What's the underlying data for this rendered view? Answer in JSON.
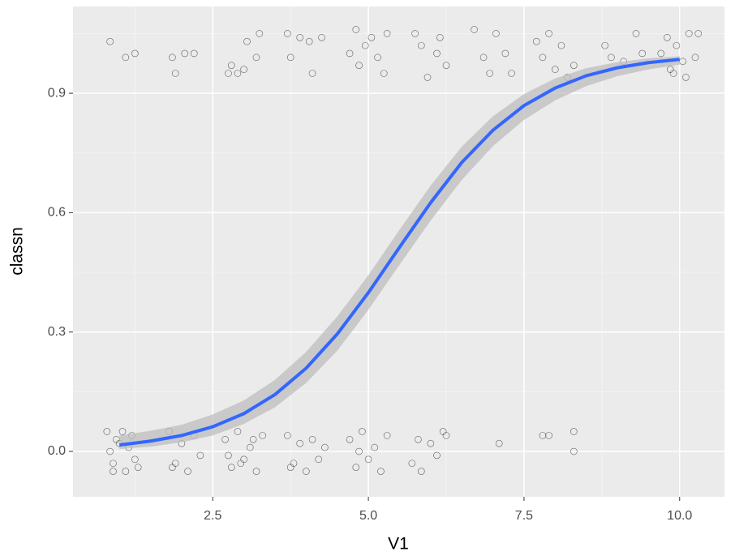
{
  "chart_data": {
    "type": "scatter",
    "x_label": "V1",
    "y_label": "classn",
    "xlim": [
      0.255,
      10.72
    ],
    "ylim": [
      -0.114,
      1.118
    ],
    "xticks": [
      2.5,
      {
        "value": 5,
        "label": "5.0"
      },
      7.5,
      {
        "value": 10,
        "label": "10.0"
      }
    ],
    "yticks": [
      {
        "value": 0,
        "label": "0.0"
      },
      0.3,
      0.6,
      0.9
    ],
    "xminor": [
      1.25,
      3.75,
      6.25,
      8.75
    ],
    "yminor": [
      0.15,
      0.45,
      0.75,
      1.05
    ],
    "grid": true,
    "points": {
      "color": "#000000",
      "x": [
        0.8,
        0.9,
        1.0,
        1.1,
        1.2,
        0.85,
        1.25,
        0.95,
        1.15,
        1.3,
        0.9,
        1.05,
        1.8,
        1.9,
        2.0,
        2.1,
        2.2,
        2.3,
        1.85,
        2.7,
        2.8,
        2.9,
        3.0,
        3.1,
        3.2,
        3.3,
        2.75,
        3.15,
        2.95,
        3.7,
        3.8,
        3.9,
        4.0,
        4.1,
        4.2,
        4.3,
        3.75,
        4.7,
        4.8,
        4.9,
        5.0,
        5.1,
        5.2,
        5.3,
        4.85,
        5.7,
        5.8,
        5.85,
        6.0,
        6.1,
        6.2,
        6.25,
        7.1,
        7.8,
        7.9,
        8.3,
        8.3,
        0.85,
        1.1,
        1.25,
        1.85,
        1.9,
        2.05,
        2.2,
        2.75,
        2.8,
        2.9,
        3.0,
        3.05,
        3.2,
        3.25,
        3.7,
        3.75,
        3.9,
        4.05,
        4.1,
        4.25,
        4.7,
        4.8,
        4.85,
        4.95,
        5.05,
        5.15,
        5.25,
        5.3,
        5.75,
        5.85,
        5.95,
        6.1,
        6.15,
        6.25,
        6.7,
        6.85,
        6.95,
        7.05,
        7.2,
        7.3,
        7.7,
        7.8,
        7.9,
        8.0,
        8.1,
        8.2,
        8.3,
        8.8,
        8.9,
        9.1,
        9.3,
        9.4,
        9.7,
        9.8,
        9.85,
        9.95,
        10.05,
        10.15,
        10.25,
        10.3,
        9.9,
        10.1
      ],
      "y": [
        0.05,
        -0.03,
        0.02,
        -0.05,
        0.04,
        0.0,
        -0.02,
        0.03,
        0.01,
        -0.04,
        -0.05,
        0.05,
        0.05,
        -0.03,
        0.02,
        -0.05,
        0.04,
        -0.01,
        -0.04,
        0.03,
        -0.04,
        0.05,
        -0.02,
        0.01,
        -0.05,
        0.04,
        -0.01,
        0.03,
        -0.03,
        0.04,
        -0.03,
        0.02,
        -0.05,
        0.03,
        -0.02,
        0.01,
        -0.04,
        0.03,
        -0.04,
        0.05,
        -0.02,
        0.01,
        -0.05,
        0.04,
        0.0,
        -0.03,
        0.03,
        -0.05,
        0.02,
        -0.01,
        0.05,
        0.04,
        0.02,
        0.04,
        0.04,
        0.05,
        0.0,
        1.03,
        0.99,
        1.0,
        0.99,
        0.95,
        1.0,
        1.0,
        0.95,
        0.97,
        0.95,
        0.96,
        1.03,
        0.99,
        1.05,
        1.05,
        0.99,
        1.04,
        1.03,
        0.95,
        1.04,
        1.0,
        1.06,
        0.97,
        1.02,
        1.04,
        0.99,
        0.95,
        1.05,
        1.05,
        1.02,
        0.94,
        1.0,
        1.04,
        0.97,
        1.06,
        0.99,
        0.95,
        1.05,
        1.0,
        0.95,
        1.03,
        0.99,
        1.05,
        0.96,
        1.02,
        0.94,
        0.97,
        1.02,
        0.99,
        0.98,
        1.05,
        1.0,
        1.0,
        1.04,
        0.96,
        1.02,
        0.98,
        1.05,
        0.99,
        1.05,
        0.95,
        0.94
      ]
    },
    "fit": {
      "color": "#3366ff",
      "band_color": "#bebebe",
      "x": [
        1,
        1.5,
        2,
        2.5,
        3,
        3.5,
        4,
        4.5,
        5,
        5.5,
        6,
        6.5,
        7,
        7.5,
        8,
        8.5,
        9,
        9.5,
        10
      ],
      "y": [
        0.016,
        0.026,
        0.04,
        0.062,
        0.095,
        0.143,
        0.209,
        0.295,
        0.399,
        0.513,
        0.625,
        0.726,
        0.807,
        0.869,
        0.913,
        0.944,
        0.964,
        0.977,
        0.985
      ],
      "lower": [
        0.006,
        0.012,
        0.023,
        0.04,
        0.069,
        0.111,
        0.172,
        0.253,
        0.356,
        0.469,
        0.58,
        0.682,
        0.767,
        0.833,
        0.882,
        0.918,
        0.943,
        0.96,
        0.972
      ],
      "upper": [
        0.04,
        0.052,
        0.067,
        0.093,
        0.128,
        0.18,
        0.25,
        0.339,
        0.443,
        0.557,
        0.668,
        0.766,
        0.842,
        0.898,
        0.937,
        0.963,
        0.978,
        0.988,
        0.993
      ]
    }
  }
}
